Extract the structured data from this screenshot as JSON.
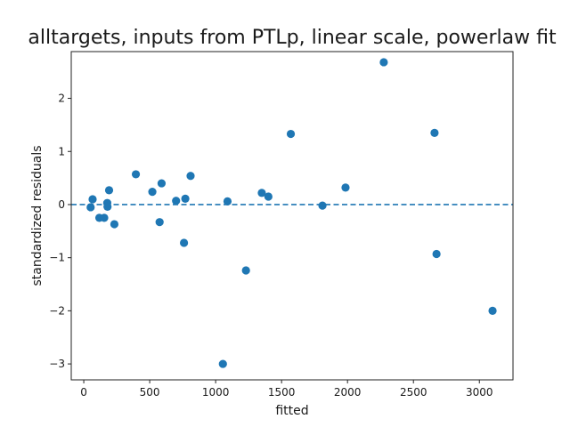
{
  "chart_data": {
    "type": "scatter",
    "title": "alltargets, inputs from PTLp, linear scale, powerlaw fit",
    "xlabel": "fitted",
    "ylabel": "standardized residuals",
    "xlim": [
      -95,
      3255
    ],
    "ylim": [
      -3.3,
      2.88
    ],
    "xticks": [
      0,
      500,
      1000,
      1500,
      2000,
      2500,
      3000
    ],
    "yticks": [
      -3,
      -2,
      -1,
      0,
      1,
      2
    ],
    "ytick_labels": [
      "−3",
      "−2",
      "−1",
      "0",
      "1",
      "2"
    ],
    "reference_line": {
      "y": 0,
      "style": "dashed"
    },
    "grid": false,
    "colors": {
      "points": "#1f77b4",
      "reference_line": "#1f77b4"
    },
    "points": [
      {
        "x": 52,
        "y": -0.05
      },
      {
        "x": 67,
        "y": 0.1
      },
      {
        "x": 118,
        "y": -0.25
      },
      {
        "x": 155,
        "y": -0.25
      },
      {
        "x": 178,
        "y": 0.03
      },
      {
        "x": 180,
        "y": -0.04
      },
      {
        "x": 192,
        "y": 0.27
      },
      {
        "x": 232,
        "y": -0.37
      },
      {
        "x": 395,
        "y": 0.57
      },
      {
        "x": 520,
        "y": 0.24
      },
      {
        "x": 575,
        "y": -0.33
      },
      {
        "x": 590,
        "y": 0.4
      },
      {
        "x": 700,
        "y": 0.07
      },
      {
        "x": 760,
        "y": -0.72
      },
      {
        "x": 770,
        "y": 0.11
      },
      {
        "x": 810,
        "y": 0.54
      },
      {
        "x": 1055,
        "y": -3.0
      },
      {
        "x": 1090,
        "y": 0.06
      },
      {
        "x": 1230,
        "y": -1.24
      },
      {
        "x": 1350,
        "y": 0.22
      },
      {
        "x": 1400,
        "y": 0.15
      },
      {
        "x": 1570,
        "y": 1.33
      },
      {
        "x": 1810,
        "y": -0.02
      },
      {
        "x": 1985,
        "y": 0.32
      },
      {
        "x": 2275,
        "y": 2.68
      },
      {
        "x": 2660,
        "y": 1.35
      },
      {
        "x": 2675,
        "y": -0.93
      },
      {
        "x": 3100,
        "y": -2.0
      }
    ]
  }
}
